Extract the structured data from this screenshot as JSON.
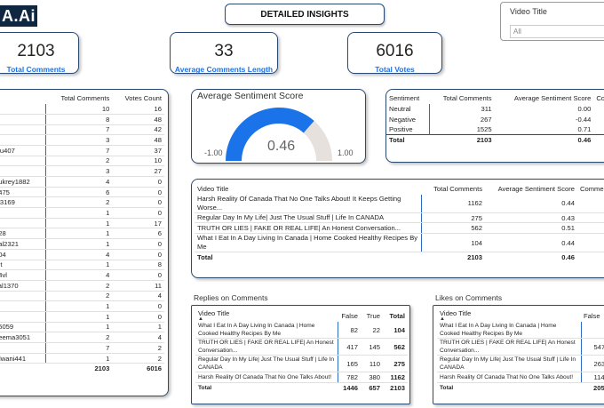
{
  "logo": "A.Ai",
  "page_title": "DETAILED INSIGHTS",
  "slicer": {
    "title": "Video Title",
    "value": "All"
  },
  "kpis": [
    {
      "value": "2103",
      "label": "Total Comments"
    },
    {
      "value": "33",
      "label": "Average Comments Length"
    },
    {
      "value": "6016",
      "label": "Total Votes"
    }
  ],
  "users_table": {
    "headers": [
      "Total Comments",
      "Votes Count"
    ],
    "rows": [
      [
        "",
        "10",
        "16"
      ],
      [
        "",
        "8",
        "48"
      ],
      [
        "8",
        "7",
        "42"
      ],
      [
        "",
        "3",
        "48"
      ],
      [
        "olu407",
        "7",
        "37"
      ],
      [
        "",
        "2",
        "10"
      ],
      [
        "",
        "3",
        "27"
      ],
      [
        "hukrey1882",
        "4",
        "0"
      ],
      [
        "a475",
        "6",
        "0"
      ],
      [
        "gi3169",
        "2",
        "0"
      ],
      [
        "",
        "1",
        "0"
      ],
      [
        "",
        "1",
        "17"
      ],
      [
        "528",
        "1",
        "6"
      ],
      [
        "pal2321",
        "1",
        "0"
      ],
      [
        "704",
        "4",
        "0"
      ],
      [
        "mt",
        "1",
        "8"
      ],
      [
        "d4vl",
        "4",
        "0"
      ],
      [
        "val1370",
        "2",
        "11"
      ],
      [
        "",
        "2",
        "4"
      ],
      [
        "",
        "1",
        "0"
      ],
      [
        "",
        "1",
        "0"
      ],
      [
        "a5059",
        "1",
        "1"
      ],
      [
        "heema3051",
        "2",
        "4"
      ],
      [
        "",
        "7",
        "2"
      ],
      [
        "rdwani441",
        "1",
        "2"
      ]
    ],
    "total": [
      "",
      "2103",
      "6016"
    ]
  },
  "gauge": {
    "title": "Average Sentiment Score",
    "value": "0.46",
    "min": "-1.00",
    "max": "1.00",
    "fraction": 0.73
  },
  "sentiment_table": {
    "headers": [
      "Sentiment",
      "Total Comments",
      "Average Sentiment Score",
      "Com"
    ],
    "rows": [
      [
        "Neutral",
        "311",
        "0.00"
      ],
      [
        "Negative",
        "267",
        "-0.44"
      ],
      [
        "Positive",
        "1525",
        "0.71"
      ]
    ],
    "total": [
      "Total",
      "2103",
      "0.46"
    ]
  },
  "video_table": {
    "headers": [
      "Video Title",
      "Total Comments",
      "Average Sentiment Score",
      "Comme"
    ],
    "rows": [
      [
        "Harsh Reality Of Canada That No One Talks About! It Keeps Getting Worse...",
        "1162",
        "0.44"
      ],
      [
        "Regular Day In My Life| Just The Usual Stuff | Life In CANADA",
        "275",
        "0.43"
      ],
      [
        "TRUTH OR LIES | FAKE OR REAL LIFE| An Honest Conversation...",
        "562",
        "0.51"
      ],
      [
        "What I Eat In A Day Living In Canada | Home Cooked Healthy Recipes By Me",
        "104",
        "0.44"
      ]
    ],
    "total": [
      "Total",
      "2103",
      "0.46"
    ]
  },
  "replies": {
    "title": "Replies on Comments",
    "headers": [
      "Video Title",
      "False",
      "True",
      "Total"
    ],
    "rows": [
      [
        "What I Eat In A Day Living In Canada | Home Cooked Healthy Recipes By Me",
        "82",
        "22",
        "104"
      ],
      [
        "TRUTH OR LIES | FAKE OR REAL LIFE| An Honest Conversation...",
        "417",
        "145",
        "562"
      ],
      [
        "Regular Day In My Life| Just The Usual Stuff | Life In CANADA",
        "165",
        "110",
        "275"
      ],
      [
        "Harsh Reality Of Canada That No One Talks About!",
        "782",
        "380",
        "1162"
      ]
    ],
    "total": [
      "Total",
      "1446",
      "657",
      "2103"
    ]
  },
  "likes": {
    "title": "Likes on Comments",
    "headers": [
      "Video Title",
      "False"
    ],
    "rows": [
      [
        "What I Eat In A Day Living In Canada | Home Cooked Healthy Recipes By Me",
        ""
      ],
      [
        "TRUTH OR LIES | FAKE OR REAL LIFE| An Honest Conversation...",
        "547"
      ],
      [
        "Regular Day In My Life| Just The Usual Stuff | Life In CANADA",
        "263"
      ],
      [
        "Harsh Reality Of Canada That No One Talks About!",
        "1145"
      ]
    ],
    "total": [
      "Total",
      "2059"
    ]
  },
  "colors": {
    "accent": "#1a73e8",
    "gauge_fill": "#1a73e8",
    "gauge_track": "#e6e1dc",
    "border": "#2b4a73"
  }
}
